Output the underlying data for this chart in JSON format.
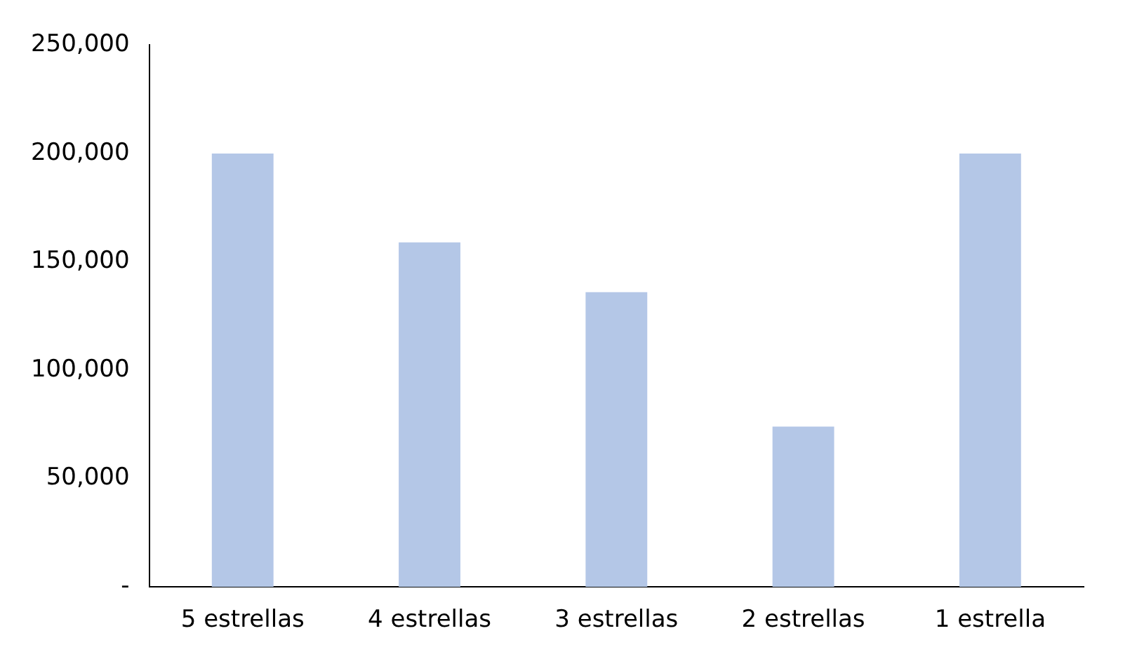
{
  "chart_data": {
    "type": "bar",
    "categories": [
      "5 estrellas",
      "4 estrellas",
      "3 estrellas",
      "2 estrellas",
      "1 estrella"
    ],
    "values": [
      200000,
      159000,
      136000,
      74000,
      200000
    ],
    "color": "#b4c7e7",
    "ylim": [
      0,
      250000
    ],
    "yticks": [
      {
        "value": 0,
        "label": "-"
      },
      {
        "value": 50000,
        "label": "50,000"
      },
      {
        "value": 100000,
        "label": "100,000"
      },
      {
        "value": 150000,
        "label": "150,000"
      },
      {
        "value": 200000,
        "label": "200,000"
      },
      {
        "value": 250000,
        "label": "250,000"
      }
    ],
    "grid": false
  }
}
